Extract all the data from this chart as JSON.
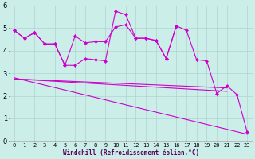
{
  "xlabel": "Windchill (Refroidissement éolien,°C)",
  "x_ticks": [
    0,
    1,
    2,
    3,
    4,
    5,
    6,
    7,
    8,
    9,
    10,
    11,
    12,
    13,
    14,
    15,
    16,
    17,
    18,
    19,
    20,
    21,
    22,
    23
  ],
  "ylim": [
    0,
    6
  ],
  "xlim": [
    -0.5,
    23.5
  ],
  "background_color": "#cceee8",
  "line_color": "#cc00cc",
  "grid_color": "#aacccc",
  "series": {
    "upper1": {
      "x": [
        0,
        1,
        2,
        3,
        4,
        5,
        6,
        7,
        8,
        9,
        10,
        11,
        12,
        13,
        14,
        15,
        16,
        17,
        18,
        19,
        20,
        21,
        22,
        23
      ],
      "y": [
        4.9,
        4.55,
        4.8,
        4.3,
        4.3,
        3.35,
        3.35,
        3.65,
        3.6,
        3.55,
        5.75,
        5.6,
        4.55,
        4.55,
        4.45,
        3.65,
        5.1,
        4.9,
        3.6,
        3.55,
        2.1,
        2.45,
        2.05,
        0.4
      ],
      "marker": "D"
    },
    "upper2": {
      "x": [
        0,
        1,
        2,
        3,
        4,
        5,
        6,
        7,
        8,
        9,
        10,
        11,
        12,
        13,
        14,
        15,
        16
      ],
      "y": [
        4.9,
        4.55,
        4.8,
        4.3,
        4.3,
        3.35,
        4.65,
        4.35,
        4.4,
        4.4,
        5.05,
        5.15,
        4.55,
        4.55,
        4.45,
        3.65,
        5.1
      ],
      "marker": "D"
    },
    "smooth1": {
      "x": [
        0,
        23
      ],
      "y": [
        2.8,
        0.3
      ]
    },
    "smooth2": {
      "x": [
        0,
        21
      ],
      "y": [
        2.75,
        2.2
      ]
    },
    "smooth3": {
      "x": [
        0,
        21
      ],
      "y": [
        2.75,
        2.35
      ]
    }
  },
  "tick_fontsize": 5,
  "xlabel_fontsize": 5.5
}
